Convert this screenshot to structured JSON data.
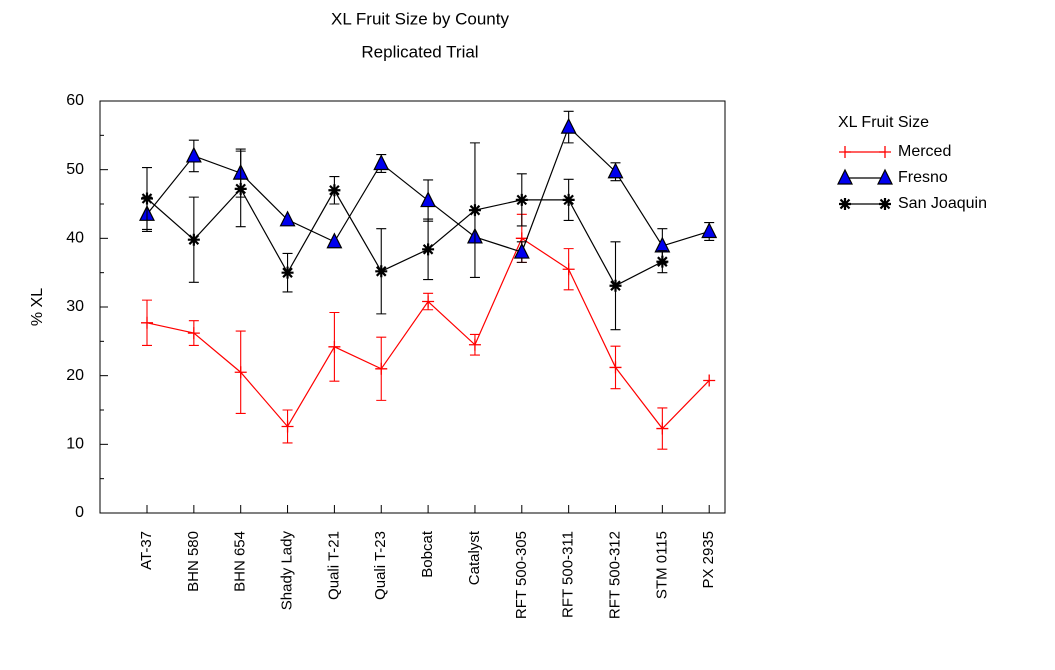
{
  "chart_data": {
    "type": "line",
    "title": "XL Fruit Size by County",
    "subtitle": "Replicated Trial",
    "y_label": "% XL",
    "legend_title": "XL Fruit Size",
    "legend_position": "right",
    "categories": [
      "AT-37",
      "BHN 580",
      "BHN 654",
      "Shady Lady",
      "Quali T-21",
      "Quali T-23",
      "Bobcat",
      "Catalyst",
      "RFT 500-305",
      "RFT 500-311",
      "RFT 500-312",
      "STM 0115",
      "PX 2935"
    ],
    "ylim": [
      0,
      60
    ],
    "yticks": [
      0,
      10,
      20,
      30,
      40,
      50,
      60
    ],
    "series": [
      {
        "name": "Merced",
        "color": "#ff0000",
        "marker": "plus",
        "values": [
          27.7,
          26.2,
          20.5,
          12.6,
          24.2,
          21,
          30.8,
          24.5,
          40,
          35.5,
          21.2,
          12.3,
          19.3
        ],
        "errors": [
          3.3,
          1.8,
          6,
          2.4,
          5,
          4.6,
          1.2,
          1.5,
          3.5,
          3,
          3.1,
          3,
          null
        ]
      },
      {
        "name": "Fresno",
        "color": "#0000ee",
        "marker": "triangle",
        "values": [
          43.5,
          52,
          49.5,
          42.7,
          39.5,
          50.9,
          45.5,
          40.2,
          38,
          56.2,
          49.7,
          38.9,
          41
        ],
        "errors": [
          2.5,
          2.3,
          3.5,
          null,
          null,
          1.3,
          3,
          null,
          1.5,
          2.3,
          1.3,
          2.5,
          1.3
        ]
      },
      {
        "name": "San Joaquin",
        "color": "#000000",
        "marker": "asterisk",
        "values": [
          45.8,
          39.8,
          47.2,
          35,
          47,
          35.2,
          38.4,
          44.1,
          45.6,
          45.6,
          33.1,
          36.6,
          null
        ],
        "errors": [
          4.5,
          6.2,
          5.5,
          2.8,
          2,
          6.2,
          4.4,
          9.8,
          3.8,
          3,
          6.4,
          1.6,
          null
        ]
      }
    ]
  }
}
